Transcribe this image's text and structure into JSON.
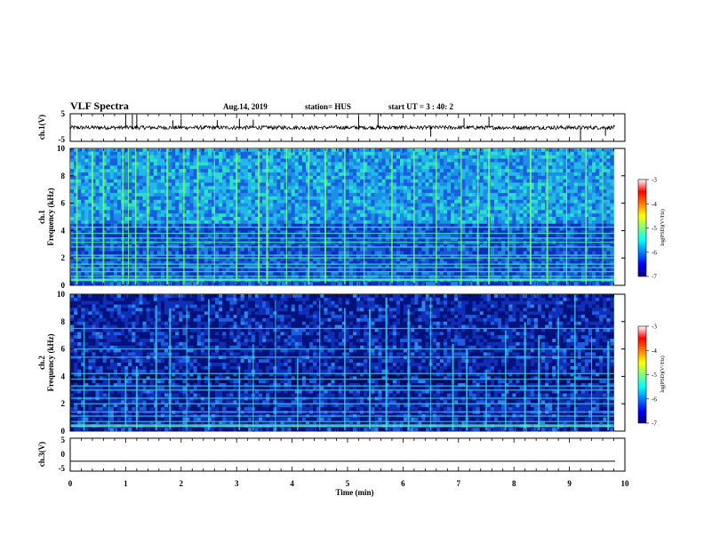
{
  "header": {
    "title": "VLF Spectra",
    "date": "Aug.14, 2019",
    "station": "station= HUS",
    "start": "start  UT =  3 : 40: 2"
  },
  "chart_data": [
    {
      "type": "line",
      "panel": "ch1-waveform",
      "ylabel": "ch.1(V)",
      "ylim": [
        -5,
        5
      ],
      "yticks": [
        "5",
        "-5"
      ],
      "xlim": [
        0,
        10
      ],
      "baseline": 0,
      "noise_note": "dense broadband trace with sparse spikes",
      "spike_times": [
        1.0,
        1.12,
        1.2,
        1.85,
        2.0,
        2.65,
        3.05,
        3.3,
        5.2,
        5.55,
        6.5,
        7.1,
        7.55,
        9.2,
        9.65
      ],
      "color": "#000000"
    },
    {
      "type": "heatmap",
      "panel": "ch1-spectrogram",
      "ylabel_line1": "ch.1",
      "ylabel_line2": "Frequency (kHz)",
      "ylim": [
        0,
        10
      ],
      "yticks": [
        "0",
        "2",
        "4",
        "6",
        "8",
        "10"
      ],
      "xlim": [
        0,
        9.8
      ],
      "horizontal_lines_khz": [
        0.4,
        0.65,
        1.0,
        1.3,
        1.55,
        2.0,
        2.2,
        2.8,
        3.15,
        3.45,
        3.8,
        4.25
      ],
      "sferic_times": [
        0.12,
        0.4,
        0.6,
        0.95,
        1.05,
        1.18,
        1.4,
        1.75,
        2.05,
        2.3,
        2.6,
        3.0,
        3.4,
        3.55,
        3.9,
        4.3,
        4.6,
        4.95,
        5.3,
        5.8,
        6.2,
        6.6,
        7.05,
        7.35,
        7.55,
        7.9,
        8.3,
        8.6,
        8.95,
        9.3,
        9.6
      ],
      "background_level": "cyan-blue"
    },
    {
      "type": "heatmap",
      "panel": "ch2-spectrogram",
      "ylabel_line1": "ch.2",
      "ylabel_line2": "Frequency (kHz)",
      "ylim": [
        0,
        10
      ],
      "yticks": [
        "0",
        "2",
        "4",
        "6",
        "8",
        "10"
      ],
      "xlim": [
        0,
        9.8
      ],
      "horizontal_lines_khz": [
        0.35,
        0.7,
        1.1,
        1.4,
        2.0,
        2.4,
        3.0,
        3.3,
        3.8,
        4.2,
        5.4,
        6.0,
        7.5
      ],
      "sferic_times": [
        0.25,
        0.7,
        1.0,
        1.2,
        1.55,
        1.8,
        2.1,
        2.5,
        3.05,
        3.3,
        3.7,
        4.1,
        4.5,
        4.95,
        5.4,
        5.7,
        6.1,
        6.5,
        6.9,
        7.15,
        7.5,
        7.85,
        8.2,
        8.45,
        8.8,
        9.1,
        9.4,
        9.7
      ],
      "background_level": "dark-blue"
    },
    {
      "type": "line",
      "panel": "ch3-waveform",
      "ylabel": "ch.3(V)",
      "ylim": [
        -5,
        5
      ],
      "yticks": [
        "5",
        "0",
        "-5"
      ],
      "xlim": [
        0,
        10
      ],
      "constant_value": -2,
      "color": "#000000"
    }
  ],
  "x_axis": {
    "label": "Time  (min)",
    "ticks": [
      "0",
      "1",
      "2",
      "3",
      "4",
      "5",
      "6",
      "7",
      "8",
      "9",
      "10"
    ],
    "range": [
      0,
      10
    ]
  },
  "colorbars": [
    {
      "panel": "ch1",
      "label": "log(PSD)(V²/Hz)",
      "ticks": [
        "-3",
        "-4",
        "-5",
        "-6",
        "-7"
      ],
      "range": [
        -7,
        -3
      ],
      "colormap": [
        "#00007f",
        "#0000ff",
        "#007fff",
        "#00ffff",
        "#7fff7f",
        "#ffff00",
        "#ff7f00",
        "#ff0000",
        "#ffffff"
      ]
    },
    {
      "panel": "ch2",
      "label": "log(PSD)(V²/Hz)",
      "ticks": [
        "-3",
        "-4",
        "-5",
        "-6",
        "-7"
      ],
      "range": [
        -7,
        -3
      ],
      "colormap": [
        "#00007f",
        "#0000ff",
        "#007fff",
        "#00ffff",
        "#7fff7f",
        "#ffff00",
        "#ff7f00",
        "#ff0000",
        "#ffffff"
      ]
    }
  ]
}
